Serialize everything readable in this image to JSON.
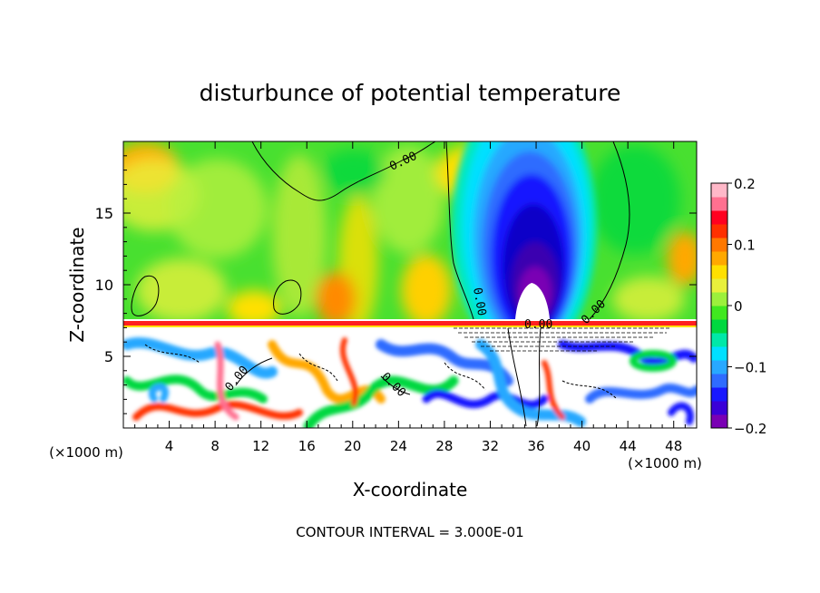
{
  "chart_data": {
    "type": "heatmap",
    "title": "disturbunce of potential temperature",
    "xlabel": "X-coordinate",
    "ylabel": "Z-coordinate",
    "x_unit_left": "(×1000 m)",
    "x_unit_right": "(×1000 m)",
    "footer": "CONTOUR INTERVAL = 3.000E-01",
    "xlim": [
      0,
      50
    ],
    "ylim": [
      0,
      20
    ],
    "x_ticks": [
      4,
      8,
      12,
      16,
      20,
      24,
      28,
      32,
      36,
      40,
      44,
      48
    ],
    "y_ticks": [
      5,
      10,
      15
    ],
    "colorbar": {
      "min": -0.2,
      "max": 0.2,
      "ticks": [
        0.2,
        0.1,
        0,
        -0.1,
        -0.2
      ],
      "tick_labels": [
        "0.2",
        "0.1",
        "0",
        "−0.1",
        "−0.2"
      ],
      "colors": [
        "#7a00b4",
        "#3a00d8",
        "#1818ff",
        "#2f6cff",
        "#28a8ff",
        "#00e0ff",
        "#00e8a8",
        "#00d840",
        "#40e820",
        "#9cf03c",
        "#e8f03c",
        "#ffe000",
        "#ffa800",
        "#ff7800",
        "#ff3000",
        "#ff0020",
        "#ff7090",
        "#ffb8c8"
      ]
    },
    "contour_labels": [
      "0.00",
      "0.00",
      "0.00",
      "0.00",
      "0.00",
      "0.00"
    ],
    "features": [
      {
        "name": "cold anomaly",
        "x_center": 36,
        "z_center": 12,
        "value": -0.2
      },
      {
        "name": "zero contour",
        "value": 0.0
      },
      {
        "name": "inversion layer",
        "z": 7.3,
        "value": 0.2
      }
    ]
  }
}
